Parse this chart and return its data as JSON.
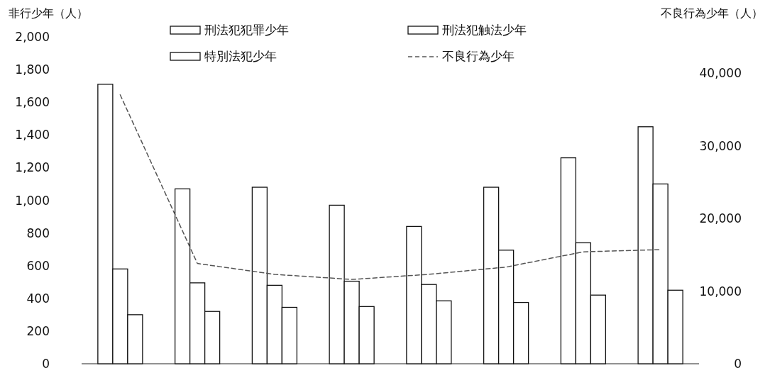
{
  "chart_data": {
    "type": "bar",
    "ylabel": "非行少年（人）",
    "y2label": "不良行為少年（人）",
    "categories": [
      null,
      null,
      null,
      null,
      null,
      null,
      null,
      null
    ],
    "series": [
      {
        "name": "刑法犯犯罪少年",
        "color": "#ffffff",
        "values": [
          1710,
          1070,
          1080,
          970,
          840,
          1080,
          1260,
          1450
        ]
      },
      {
        "name": "刑法犯触法少年",
        "color": "#ffffff",
        "values": [
          580,
          495,
          480,
          505,
          485,
          695,
          740,
          1100
        ]
      },
      {
        "name": "特別法犯少年",
        "color": "#ffffff",
        "values": [
          300,
          320,
          345,
          350,
          385,
          375,
          420,
          450
        ]
      },
      {
        "name": "不良行為少年",
        "type": "line",
        "axis": "y2",
        "color": "#555555",
        "line_style": "dashed",
        "values": [
          37000,
          13800,
          12300,
          11600,
          12300,
          13300,
          15400,
          15700
        ]
      }
    ],
    "ylim": [
      0,
      2000
    ],
    "yticks": [
      0,
      200,
      400,
      600,
      800,
      {
        "value": 1000,
        "label": "1,000"
      },
      {
        "value": 1200,
        "label": "1,200"
      },
      {
        "value": 1400,
        "label": "1,400"
      },
      {
        "value": 1600,
        "label": "1,600"
      },
      {
        "value": 1800,
        "label": "1,800"
      },
      {
        "value": 2000,
        "label": "2,000"
      }
    ],
    "y2lim": [
      0,
      40000
    ],
    "y2ticks": [
      0,
      {
        "value": 10000,
        "label": "10,000"
      },
      {
        "value": 20000,
        "label": "20,000"
      },
      {
        "value": 30000,
        "label": "30,000"
      },
      {
        "value": 40000,
        "label": "40,000"
      }
    ],
    "grid": false,
    "legend": "top"
  }
}
